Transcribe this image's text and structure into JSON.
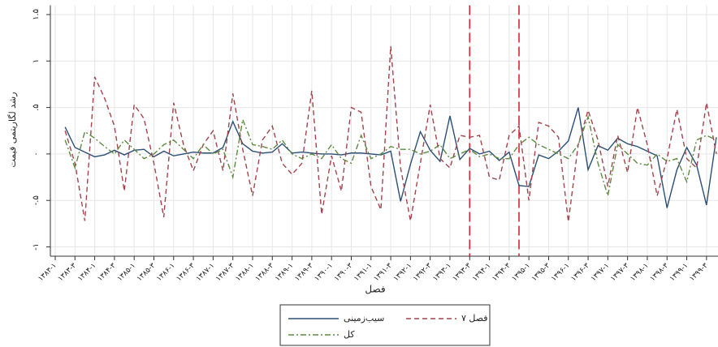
{
  "chart_data": {
    "type": "line",
    "ylabel": "رشد لگاریتمی قیمت",
    "xlabel": "فصل",
    "categories": [
      "۱۳۸۳-۱",
      null,
      "۱۳۸۳-۳",
      null,
      "۱۳۸۴-۱",
      null,
      "۱۳۸۴-۳",
      null,
      "۱۳۸۵-۱",
      null,
      "۱۳۸۵-۳",
      null,
      "۱۳۸۶-۱",
      null,
      "۱۳۸۶-۳",
      null,
      "۱۳۸۷-۱",
      null,
      "۱۳۸۷-۳",
      null,
      "۱۳۸۸-۱",
      null,
      "۱۳۸۸-۳",
      null,
      "۱۳۸۹-۱",
      null,
      "۱۳۸۹-۳",
      null,
      "۱۳۹۰-۱",
      null,
      "۱۳۹۰-۳",
      null,
      "۱۳۹۱-۱",
      null,
      "۱۳۹۱-۳",
      null,
      "۱۳۹۲-۱",
      null,
      "۱۳۹۲-۳",
      null,
      "۱۳۹۳-۱",
      null,
      "۱۳۹۳-۳",
      null,
      "۱۳۹۴-۱",
      null,
      "۱۳۹۴-۳",
      null,
      "۱۳۹۵-۱",
      null,
      "۱۳۹۵-۳",
      null,
      "۱۳۹۶-۱",
      null,
      "۱۳۹۶-۳",
      null,
      "۱۳۹۷-۱",
      null,
      "۱۳۹۷-۳",
      null,
      "۱۳۹۸-۱",
      null,
      "۱۳۹۸-۳",
      null,
      "۱۳۹۹-۱",
      null,
      "۱۳۹۹-۳",
      null
    ],
    "series": [
      {
        "name": "سیب‌زمینی",
        "color": "#2b4f76",
        "dash": "none",
        "values": [
          null,
          0.29,
          0.07,
          0.02,
          -0.03,
          -0.01,
          0.04,
          -0.01,
          0.04,
          0.05,
          -0.03,
          0.03,
          -0.02,
          0,
          0.02,
          0.01,
          0.01,
          0.07,
          0.35,
          0.11,
          0.03,
          0.01,
          0.02,
          0.11,
          0.01,
          0.02,
          0.01,
          0,
          0,
          -0.01,
          0.01,
          0.01,
          0,
          -0.01,
          0.03,
          -0.51,
          -0.11,
          0.24,
          0.04,
          -0.08,
          0.41,
          -0.06,
          0.06,
          0,
          0.03,
          -0.07,
          0.02,
          -0.34,
          -0.35,
          -0.01,
          -0.05,
          0.03,
          0.14,
          0.5,
          -0.17,
          0.09,
          0.04,
          0.17,
          0.11,
          0.08,
          0.03,
          -0.02,
          -0.58,
          -0.17,
          0.07,
          -0.12,
          -0.55,
          0.18
        ]
      },
      {
        "name": "فصل ۷",
        "color": "#a3434c",
        "dash": "6 4",
        "values": [
          null,
          0.25,
          -0.1,
          -0.72,
          0.83,
          0.6,
          0.3,
          -0.4,
          0.53,
          0.38,
          -0.1,
          -0.68,
          0.55,
          0.1,
          -0.18,
          0.1,
          0.25,
          -0.18,
          0.65,
          0.05,
          -0.45,
          0.15,
          0.3,
          -0.1,
          -0.22,
          -0.1,
          0.68,
          -0.65,
          -0.02,
          -0.4,
          0.5,
          0.45,
          -0.35,
          -0.6,
          1.16,
          -0.15,
          -0.72,
          -0.1,
          0.53,
          -0.05,
          -0.15,
          0.2,
          0.18,
          0.2,
          -0.25,
          -0.28,
          0.2,
          0.3,
          -0.5,
          0.34,
          0.3,
          0.18,
          -0.73,
          0.1,
          0.47,
          0.15,
          -0.35,
          0.2,
          -0.2,
          0.5,
          0.1,
          -0.45,
          -0.05,
          0.48,
          -0.05,
          -0.15,
          0.55,
          0.0
        ]
      },
      {
        "name": "کل",
        "color": "#5d8a3e",
        "dash": "7 3 2 3",
        "values": [
          null,
          0.15,
          -0.15,
          0.24,
          0.17,
          0.08,
          0.0,
          0.15,
          0.05,
          -0.05,
          0.0,
          0.1,
          0.15,
          0.05,
          -0.05,
          0.1,
          0.0,
          0.05,
          -0.25,
          0.37,
          0.1,
          0.08,
          0.05,
          0.15,
          0.0,
          -0.05,
          0.0,
          -0.05,
          0.1,
          -0.05,
          -0.1,
          0.2,
          -0.05,
          0.0,
          0.08,
          0.05,
          0.05,
          0.0,
          0.03,
          0.1,
          -0.05,
          0.0,
          0.05,
          -0.03,
          0.0,
          -0.05,
          -0.05,
          0.1,
          0.18,
          0.1,
          0.05,
          0.0,
          -0.05,
          0.1,
          0.4,
          -0.1,
          -0.45,
          0.1,
          0.0,
          -0.1,
          -0.12,
          0.0,
          -0.08,
          -0.05,
          -0.3,
          0.15,
          0.2,
          0.15
        ]
      }
    ],
    "vlines": [
      42,
      47
    ],
    "vline_color": "#e0262c",
    "ylim": [
      -1.1,
      1.6
    ],
    "yticks": [
      {
        "value": -1,
        "label": "-۱"
      },
      {
        "value": -0.5,
        "label": "-.۵"
      },
      {
        "value": 0,
        "label": "۰"
      },
      {
        "value": 0.5,
        "label": ".۵"
      },
      {
        "value": 1,
        "label": "۱"
      },
      {
        "value": 1.5,
        "label": "۱.۵"
      }
    ],
    "grid": true
  }
}
